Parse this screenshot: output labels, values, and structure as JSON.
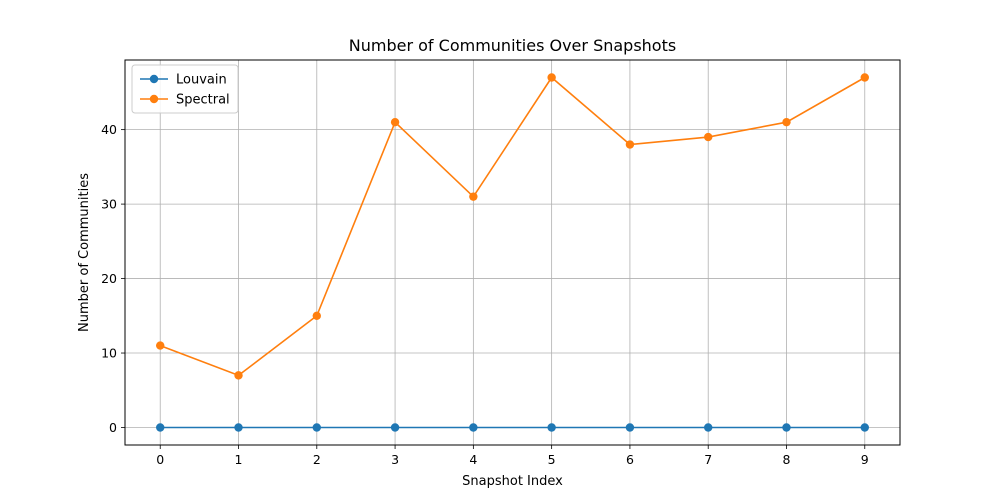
{
  "chart_data": {
    "type": "line",
    "title": "Number of Communities Over Snapshots",
    "xlabel": "Snapshot Index",
    "ylabel": "Number of Communities",
    "x": [
      0,
      1,
      2,
      3,
      4,
      5,
      6,
      7,
      8,
      9
    ],
    "xlim": [
      -0.45,
      9.45
    ],
    "ylim": [
      -2.35,
      49.35
    ],
    "xticks": [
      0,
      1,
      2,
      3,
      4,
      5,
      6,
      7,
      8,
      9
    ],
    "yticks": [
      0,
      10,
      20,
      30,
      40
    ],
    "grid": true,
    "legend_position": "top-left",
    "series": [
      {
        "name": "Louvain",
        "color": "#1f77b4",
        "values": [
          0,
          0,
          0,
          0,
          0,
          0,
          0,
          0,
          0,
          0
        ]
      },
      {
        "name": "Spectral",
        "color": "#ff7f0e",
        "values": [
          11,
          7,
          15,
          41,
          31,
          47,
          38,
          39,
          41,
          47
        ]
      }
    ]
  }
}
